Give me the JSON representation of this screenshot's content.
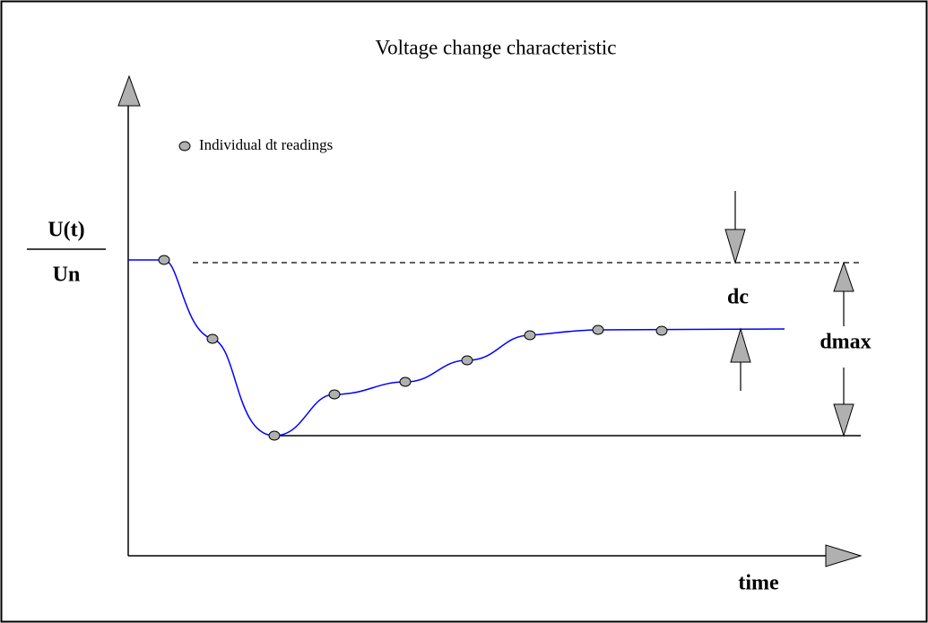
{
  "title": "Voltage change characteristic",
  "legend": "Individual dt readings",
  "y_axis": {
    "numerator": "U(t)",
    "denominator": "Un"
  },
  "x_axis": "time",
  "labels": {
    "dc": "dc",
    "dmax": "dmax"
  }
}
